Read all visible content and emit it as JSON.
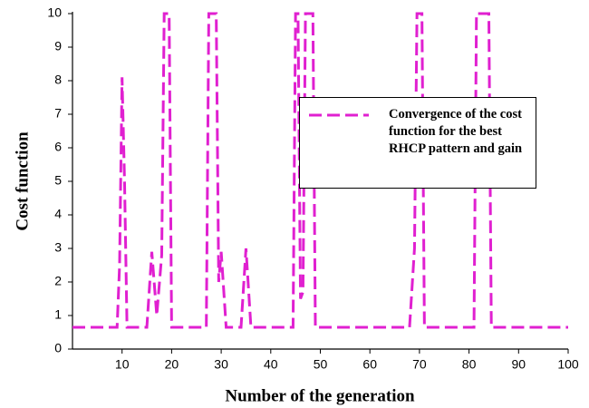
{
  "chart_data": {
    "type": "line",
    "x_label": "Number of the generation",
    "y_label": "Cost function",
    "xlim": [
      0,
      100
    ],
    "xticks": [
      10,
      20,
      30,
      40,
      50,
      60,
      70,
      80,
      90,
      100
    ],
    "ylim": [
      0,
      10
    ],
    "yticks": [
      0,
      1,
      2,
      3,
      4,
      5,
      6,
      7,
      8,
      9,
      10
    ],
    "grid": false,
    "series": [
      {
        "name": "Convergence of the cost function for the best RHCP pattern and gain",
        "color": "#e020d0",
        "x": [
          0,
          9,
          9.5,
          10,
          10.5,
          11,
          15,
          16,
          17,
          18,
          18.5,
          19.5,
          20,
          27,
          27.5,
          29,
          29.5,
          30,
          31,
          34,
          35,
          36,
          44.5,
          45,
          45.5,
          46,
          46.5,
          47,
          48.5,
          49,
          68,
          69,
          69.5,
          70.5,
          71,
          81,
          81.5,
          84,
          84.5,
          100
        ],
        "values": [
          0.65,
          0.65,
          2.5,
          8.1,
          5,
          0.65,
          0.65,
          2.9,
          1,
          2.8,
          10,
          10,
          0.65,
          0.65,
          10,
          10,
          2,
          2.9,
          0.65,
          0.65,
          3,
          0.65,
          0.65,
          10,
          10,
          1.5,
          1.7,
          10,
          10,
          0.65,
          0.65,
          3,
          10,
          10,
          0.65,
          0.65,
          10,
          10,
          0.65,
          0.65
        ]
      }
    ]
  }
}
